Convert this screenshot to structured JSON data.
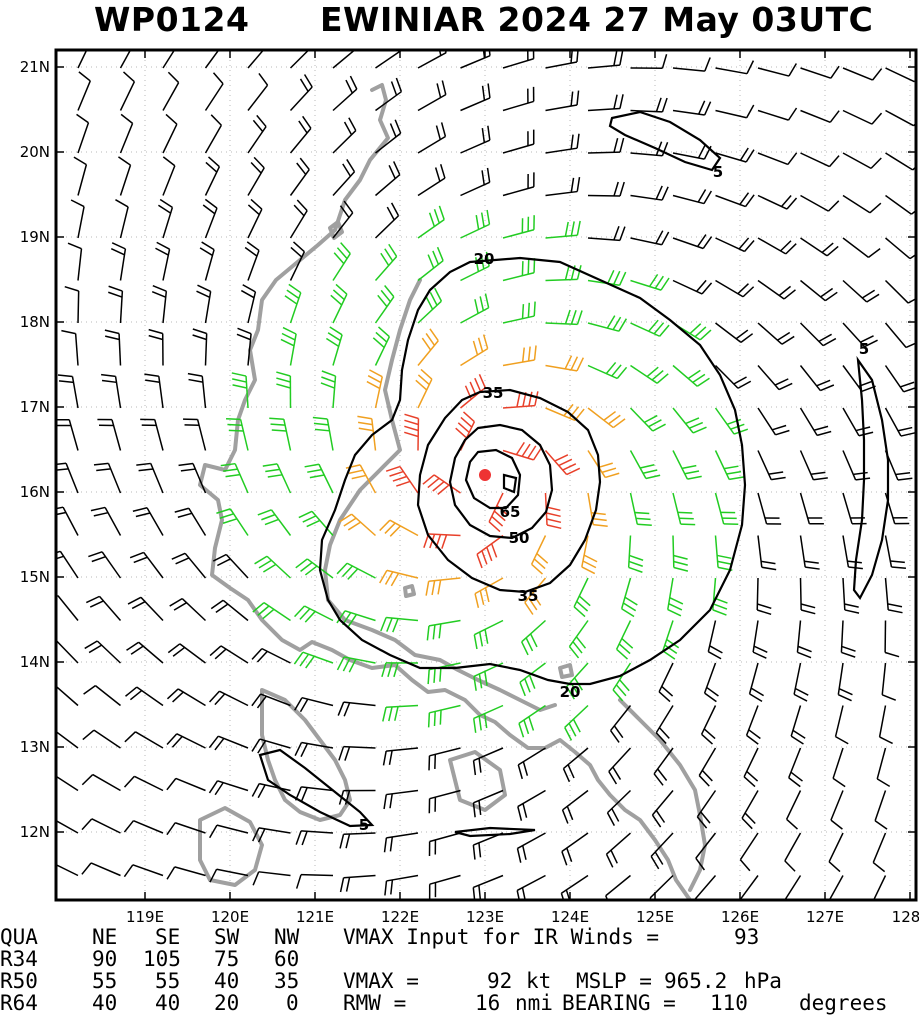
{
  "title": {
    "storm_id": "WP0124",
    "storm_name_time": "EWINIAR 2024 27 May 03UTC"
  },
  "map": {
    "lon_labels": [
      "119E",
      "120E",
      "121E",
      "122E",
      "123E",
      "124E",
      "125E",
      "126E",
      "127E",
      "128"
    ],
    "lat_labels": [
      "21N",
      "20N",
      "19N",
      "18N",
      "17N",
      "16N",
      "15N",
      "14N",
      "13N",
      "12N"
    ],
    "contour_labels": [
      "5",
      "5",
      "5",
      "20",
      "20",
      "35",
      "35",
      "50",
      "65"
    ],
    "center_marker": "storm-center-dot",
    "colors": {
      "coast": "#a0a0a0",
      "barb_black": "#000000",
      "barb_green": "#22cc22",
      "barb_orange": "#f0a020",
      "barb_red": "#e8402a",
      "contour": "#000000",
      "center": "#ee3333"
    }
  },
  "wind_table": {
    "headers": [
      "QUA",
      "NE",
      "SE",
      "SW",
      "NW"
    ],
    "rows": [
      {
        "label": "R34",
        "ne": "90",
        "se": "105",
        "sw": "75",
        "nw": "60"
      },
      {
        "label": "R50",
        "ne": "55",
        "se": "55",
        "sw": "40",
        "nw": "35"
      },
      {
        "label": "R64",
        "ne": "40",
        "se": "40",
        "sw": "20",
        "nw": "0"
      }
    ]
  },
  "info": {
    "vmax_ir_label": "VMAX Input for IR Winds =",
    "vmax_ir_value": "93",
    "vmax_label": "VMAX =",
    "vmax_value": "92",
    "vmax_unit": "kt",
    "mslp_label": "MSLP =",
    "mslp_value": "965.2",
    "mslp_unit": "hPa",
    "rmw_label": "RMW =",
    "rmw_value": "16",
    "rmw_unit": "nmi",
    "bearing_label": "BEARING =",
    "bearing_value": "110",
    "bearing_unit": "degrees"
  }
}
